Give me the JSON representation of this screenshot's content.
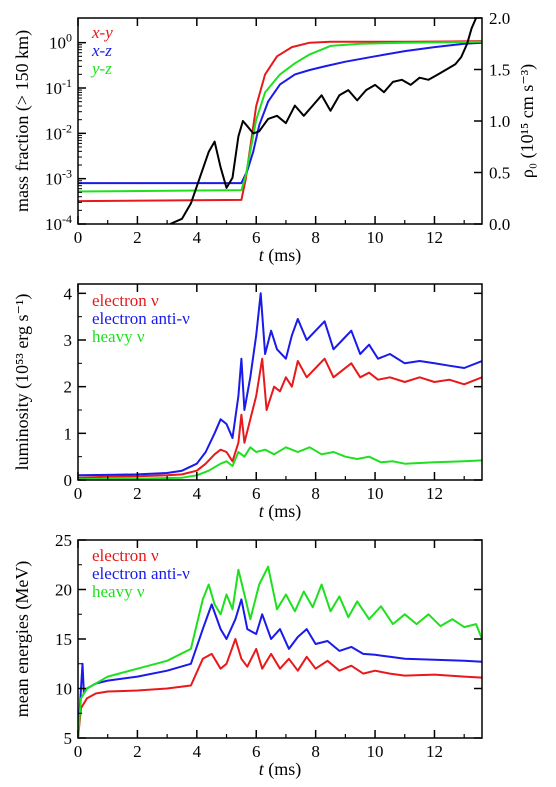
{
  "chart_data": [
    {
      "type": "line",
      "panel": "top",
      "xlabel_italic": "t",
      "xlabel_rest": " (ms)",
      "ylabel": "mass fraction (> 150 km)",
      "y2label": "ρ₀ (10¹⁵ cm s⁻³)",
      "yscale": "log",
      "xlim": [
        0,
        13.6
      ],
      "ylim": [
        0.0001,
        3.5
      ],
      "y2lim": [
        0,
        2
      ],
      "x_ticks": [
        "0",
        "2",
        "4",
        "6",
        "8",
        "10",
        "12"
      ],
      "y_ticks": [
        "10⁻⁴",
        "10⁻³",
        "10⁻²",
        "10⁻¹",
        "10⁰"
      ],
      "y2_ticks": [
        "0.0",
        "0.5",
        "1.0",
        "1.5",
        "2.0"
      ],
      "legend": [
        "x-y",
        "x-z",
        "y-z"
      ],
      "legend_position": "top-left",
      "series": [
        {
          "name": "x-y",
          "color": "#e8191c",
          "axis": "left",
          "x": [
            0,
            5.5,
            5.65,
            5.8,
            6.0,
            6.3,
            6.7,
            7.2,
            7.8,
            8.5,
            9.5,
            11,
            12.5,
            13.6
          ],
          "y": [
            0.00032,
            0.00034,
            0.001,
            0.005,
            0.04,
            0.2,
            0.5,
            0.8,
            1.0,
            1.05,
            1.05,
            1.05,
            1.06,
            1.08
          ]
        },
        {
          "name": "x-z",
          "color": "#1a1aea",
          "axis": "left",
          "x": [
            0,
            5.5,
            5.7,
            5.9,
            6.1,
            6.4,
            6.8,
            7.3,
            7.8,
            8.3,
            9,
            10,
            11,
            12,
            13,
            13.6
          ],
          "y": [
            0.0008,
            0.0008,
            0.0015,
            0.004,
            0.015,
            0.05,
            0.12,
            0.2,
            0.25,
            0.3,
            0.38,
            0.5,
            0.65,
            0.8,
            0.95,
            1.0
          ]
        },
        {
          "name": "y-z",
          "color": "#1fe01f",
          "axis": "left",
          "x": [
            0,
            5.5,
            5.65,
            5.8,
            6.0,
            6.3,
            6.8,
            7.3,
            7.8,
            8.5,
            9.5,
            11,
            12.5,
            13.6
          ],
          "y": [
            0.00052,
            0.00056,
            0.0012,
            0.004,
            0.02,
            0.08,
            0.2,
            0.35,
            0.55,
            0.85,
            0.95,
            1.0,
            1.02,
            1.05
          ]
        },
        {
          "name": "density",
          "color": "#000000",
          "axis": "right",
          "x": [
            3.1,
            3.5,
            3.8,
            4.1,
            4.4,
            4.6,
            4.8,
            5.0,
            5.2,
            5.4,
            5.55,
            5.7,
            5.9,
            6.1,
            6.4,
            6.7,
            7.0,
            7.3,
            7.6,
            7.9,
            8.2,
            8.5,
            8.8,
            9.1,
            9.4,
            9.7,
            10.0,
            10.3,
            10.6,
            10.9,
            11.2,
            11.5,
            11.8,
            12.1,
            12.4,
            12.7,
            12.9,
            13.1,
            13.25,
            13.4
          ],
          "y": [
            0.0,
            0.05,
            0.2,
            0.45,
            0.7,
            0.8,
            0.55,
            0.35,
            0.45,
            0.85,
            1.0,
            0.95,
            0.88,
            0.9,
            1.02,
            1.05,
            0.98,
            1.15,
            1.05,
            1.15,
            1.25,
            1.1,
            1.25,
            1.3,
            1.2,
            1.3,
            1.35,
            1.28,
            1.38,
            1.4,
            1.35,
            1.42,
            1.4,
            1.45,
            1.5,
            1.55,
            1.62,
            1.75,
            1.9,
            2.0
          ]
        }
      ]
    },
    {
      "type": "line",
      "panel": "middle",
      "xlabel_italic": "t",
      "xlabel_rest": " (ms)",
      "ylabel": "luminosity (10⁵³ erg s⁻¹)",
      "xlim": [
        0,
        13.6
      ],
      "ylim": [
        0,
        4.2
      ],
      "x_ticks": [
        "0",
        "2",
        "4",
        "6",
        "8",
        "10",
        "12"
      ],
      "y_ticks": [
        "0",
        "1",
        "2",
        "3",
        "4"
      ],
      "legend": [
        "electron ν",
        "electron anti-ν",
        "heavy ν"
      ],
      "legend_position": "top-left",
      "series": [
        {
          "name": "electron ν",
          "color": "#e8191c",
          "x": [
            0,
            1,
            2,
            3,
            3.5,
            4,
            4.3,
            4.6,
            4.8,
            5.0,
            5.2,
            5.4,
            5.5,
            5.6,
            5.8,
            6.0,
            6.2,
            6.35,
            6.6,
            6.8,
            7.0,
            7.2,
            7.4,
            7.7,
            8.0,
            8.3,
            8.6,
            8.9,
            9.2,
            9.5,
            9.8,
            10.1,
            10.5,
            11,
            11.5,
            12,
            12.5,
            13,
            13.6
          ],
          "y": [
            0.05,
            0.07,
            0.08,
            0.1,
            0.12,
            0.2,
            0.35,
            0.55,
            0.65,
            0.6,
            0.4,
            0.8,
            1.4,
            0.8,
            1.3,
            1.8,
            2.6,
            1.5,
            2.0,
            1.9,
            2.2,
            2.0,
            2.55,
            2.2,
            2.4,
            2.6,
            2.2,
            2.35,
            2.5,
            2.2,
            2.3,
            2.15,
            2.2,
            2.1,
            2.2,
            2.1,
            2.15,
            2.05,
            2.2
          ]
        },
        {
          "name": "electron anti-ν",
          "color": "#1a1aea",
          "x": [
            0,
            1,
            2,
            3,
            3.5,
            4,
            4.3,
            4.6,
            4.8,
            5.0,
            5.2,
            5.4,
            5.5,
            5.6,
            5.8,
            6.0,
            6.15,
            6.3,
            6.5,
            6.7,
            7.0,
            7.2,
            7.4,
            7.7,
            8.0,
            8.3,
            8.6,
            8.9,
            9.2,
            9.5,
            9.8,
            10.1,
            10.5,
            11,
            11.5,
            12,
            12.5,
            13,
            13.6
          ],
          "y": [
            0.1,
            0.11,
            0.12,
            0.15,
            0.2,
            0.35,
            0.6,
            1.0,
            1.3,
            1.2,
            0.9,
            1.8,
            2.6,
            1.5,
            2.2,
            3.1,
            4.0,
            2.7,
            3.2,
            2.8,
            2.6,
            3.1,
            3.45,
            3.0,
            3.2,
            3.4,
            2.8,
            3.0,
            3.2,
            2.7,
            2.9,
            2.6,
            2.7,
            2.5,
            2.55,
            2.5,
            2.45,
            2.4,
            2.55
          ]
        },
        {
          "name": "heavy ν",
          "color": "#1fe01f",
          "x": [
            0,
            2,
            3.5,
            4,
            4.4,
            4.8,
            5.0,
            5.2,
            5.4,
            5.6,
            5.8,
            6.0,
            6.3,
            6.6,
            7.0,
            7.4,
            7.8,
            8.2,
            8.6,
            9.0,
            9.4,
            9.8,
            10.2,
            10.6,
            11,
            12,
            13,
            13.6
          ],
          "y": [
            0.02,
            0.03,
            0.05,
            0.1,
            0.2,
            0.35,
            0.4,
            0.3,
            0.6,
            0.5,
            0.7,
            0.6,
            0.65,
            0.55,
            0.7,
            0.6,
            0.7,
            0.55,
            0.6,
            0.5,
            0.45,
            0.5,
            0.38,
            0.4,
            0.35,
            0.38,
            0.4,
            0.42
          ]
        }
      ]
    },
    {
      "type": "line",
      "panel": "bottom",
      "xlabel_italic": "t",
      "xlabel_rest": " (ms)",
      "ylabel": "mean energies (MeV)",
      "xlim": [
        0,
        13.6
      ],
      "ylim": [
        5,
        25
      ],
      "x_ticks": [
        "0",
        "2",
        "4",
        "6",
        "8",
        "10",
        "12"
      ],
      "y_ticks": [
        "5",
        "10",
        "15",
        "20",
        "25"
      ],
      "legend": [
        "electron ν",
        "electron anti-ν",
        "heavy ν"
      ],
      "legend_position": "top-left",
      "series": [
        {
          "name": "electron ν",
          "color": "#e8191c",
          "x": [
            0,
            0.1,
            0.3,
            0.6,
            1,
            2,
            3,
            3.8,
            4.2,
            4.5,
            4.8,
            5.0,
            5.3,
            5.5,
            5.7,
            6.0,
            6.2,
            6.5,
            6.8,
            7.1,
            7.4,
            7.7,
            8.0,
            8.4,
            8.8,
            9.2,
            9.6,
            10,
            10.5,
            11,
            12,
            13,
            13.6
          ],
          "y": [
            5,
            8,
            9,
            9.5,
            9.7,
            9.8,
            10,
            10.3,
            13,
            13.5,
            12,
            12.5,
            15,
            13,
            12.2,
            14,
            12,
            13.5,
            12,
            13,
            11.8,
            13.2,
            12,
            12.8,
            11.8,
            12.3,
            11.5,
            11.8,
            11.5,
            11.3,
            11.4,
            11.2,
            11.1
          ]
        },
        {
          "name": "electron anti-ν",
          "color": "#1a1aea",
          "x": [
            0,
            0.15,
            0.2,
            0.3,
            0.6,
            1,
            2,
            3,
            3.8,
            4.2,
            4.5,
            4.8,
            5.0,
            5.3,
            5.5,
            5.7,
            6.0,
            6.2,
            6.5,
            6.8,
            7.1,
            7.4,
            7.7,
            8.0,
            8.4,
            8.8,
            9.2,
            9.6,
            10,
            10.5,
            11,
            12,
            13,
            13.6
          ],
          "y": [
            5,
            12.5,
            9.5,
            10,
            10.5,
            10.8,
            11.2,
            11.8,
            12.5,
            16,
            18.5,
            16,
            15,
            17,
            19,
            16,
            15.5,
            17.5,
            15,
            16,
            14,
            15.2,
            16,
            14.5,
            14.8,
            13.8,
            14.2,
            13.5,
            13.4,
            13.2,
            13,
            12.9,
            12.8,
            12.7
          ]
        },
        {
          "name": "heavy ν",
          "color": "#1fe01f",
          "x": [
            0,
            0.1,
            0.3,
            0.6,
            1,
            2,
            3,
            3.8,
            4.2,
            4.4,
            4.6,
            4.8,
            5.0,
            5.2,
            5.4,
            5.6,
            5.8,
            6.1,
            6.4,
            6.7,
            7.0,
            7.3,
            7.6,
            7.9,
            8.2,
            8.5,
            8.8,
            9.1,
            9.4,
            9.8,
            10.2,
            10.6,
            11.0,
            11.4,
            11.8,
            12.2,
            12.6,
            13.0,
            13.4,
            13.6
          ],
          "y": [
            5,
            9,
            10,
            10.5,
            11.2,
            12,
            12.8,
            14,
            19,
            20.5,
            18.5,
            17.5,
            19.5,
            18,
            22,
            19.5,
            17,
            20.5,
            22.3,
            18,
            19.5,
            17.8,
            19.8,
            18.2,
            20.5,
            17.8,
            19.3,
            17.2,
            18.8,
            17,
            18.3,
            16.5,
            17.5,
            16.5,
            17.5,
            16.3,
            17,
            16.2,
            16.5,
            15
          ]
        }
      ]
    }
  ]
}
